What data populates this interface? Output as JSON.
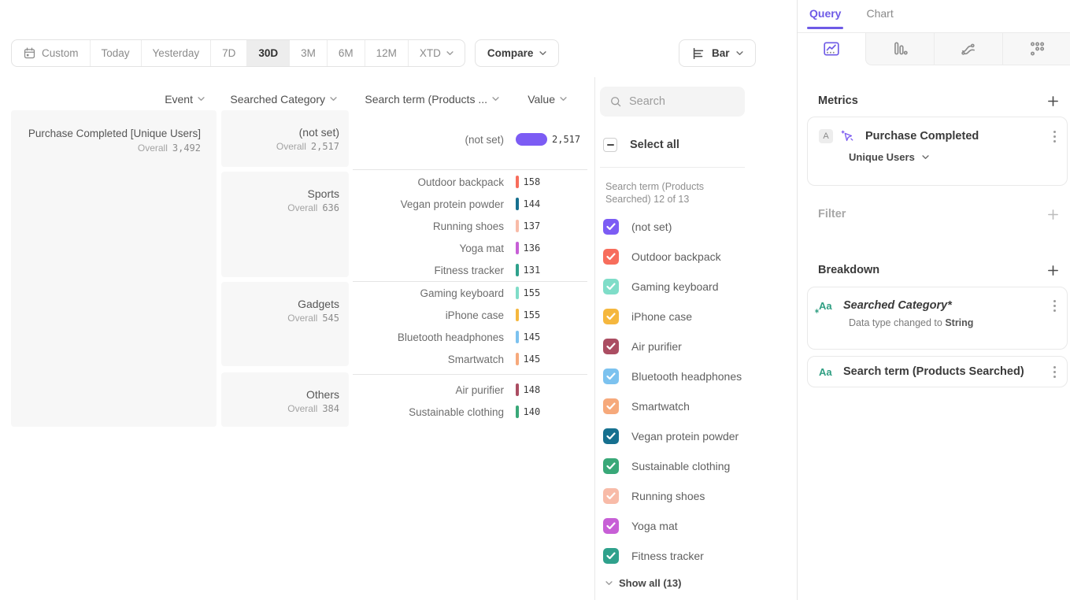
{
  "colors": {
    "accent": "#6e5ae6"
  },
  "toolbar": {
    "date_ranges": [
      {
        "label": "Custom",
        "icon": "calendar-icon"
      },
      {
        "label": "Today"
      },
      {
        "label": "Yesterday"
      },
      {
        "label": "7D"
      },
      {
        "label": "30D",
        "selected": true
      },
      {
        "label": "3M"
      },
      {
        "label": "6M"
      },
      {
        "label": "12M"
      },
      {
        "label": "XTD",
        "chevron": true
      }
    ],
    "compare_label": "Compare",
    "chart_type": {
      "label": "Bar",
      "icon": "horizontal-bar-chart-icon"
    }
  },
  "table": {
    "headers": {
      "event": "Event",
      "category": "Searched Category",
      "term": "Search term (Products ...",
      "value": "Value"
    },
    "overall_label": "Overall",
    "event": {
      "name": "Purchase Completed [Unique Users]",
      "overall": "3,492"
    },
    "groups": [
      {
        "category": "(not set)",
        "overall": "2,517",
        "rows": [
          {
            "term": "(not set)",
            "value": "2,517",
            "color": "#7c5cf4",
            "bar": "large"
          }
        ]
      },
      {
        "category": "Sports",
        "overall": "636",
        "rows": [
          {
            "term": "Outdoor backpack",
            "value": "158",
            "color": "#f76d5c"
          },
          {
            "term": "Vegan protein powder",
            "value": "144",
            "color": "#16708f"
          },
          {
            "term": "Running shoes",
            "value": "137",
            "color": "#f8bba8"
          },
          {
            "term": "Yoga mat",
            "value": "136",
            "color": "#c75fd6"
          },
          {
            "term": "Fitness tracker",
            "value": "131",
            "color": "#2fa18c"
          }
        ]
      },
      {
        "category": "Gadgets",
        "overall": "545",
        "rows": [
          {
            "term": "Gaming keyboard",
            "value": "155",
            "color": "#7fddc8"
          },
          {
            "term": "iPhone case",
            "value": "155",
            "color": "#f5b73e"
          },
          {
            "term": "Bluetooth headphones",
            "value": "145",
            "color": "#7cc2ef"
          },
          {
            "term": "Smartwatch",
            "value": "145",
            "color": "#f6a97b"
          }
        ]
      },
      {
        "category": "Others",
        "overall": "384",
        "rows": [
          {
            "term": "Air purifier",
            "value": "148",
            "color": "#ab4d62"
          },
          {
            "term": "Sustainable clothing",
            "value": "140",
            "color": "#39a878"
          }
        ]
      }
    ]
  },
  "filter_panel": {
    "search_placeholder": "Search",
    "select_all_label": "Select all",
    "list_label": "Search term (Products Searched) 12 of 13",
    "items": [
      {
        "label": "(not set)",
        "color": "#7c5cf4",
        "checked": true
      },
      {
        "label": "Outdoor backpack",
        "color": "#f76d5c",
        "checked": true
      },
      {
        "label": "Gaming keyboard",
        "color": "#7fddc8",
        "checked": true
      },
      {
        "label": "iPhone case",
        "color": "#f5b73e",
        "checked": true
      },
      {
        "label": "Air purifier",
        "color": "#ab4d62",
        "checked": true
      },
      {
        "label": "Bluetooth headphones",
        "color": "#7cc2ef",
        "checked": true
      },
      {
        "label": "Smartwatch",
        "color": "#f6a97b",
        "checked": true
      },
      {
        "label": "Vegan protein powder",
        "color": "#16708f",
        "checked": true
      },
      {
        "label": "Sustainable clothing",
        "color": "#39a878",
        "checked": true
      },
      {
        "label": "Running shoes",
        "color": "#f8bba8",
        "checked": true
      },
      {
        "label": "Yoga mat",
        "color": "#c75fd6",
        "checked": true
      },
      {
        "label": "Fitness tracker",
        "color": "#2fa18c",
        "checked": true,
        "textured": true
      }
    ],
    "show_all_label": "Show all (13)"
  },
  "sidebar": {
    "tabs": [
      {
        "label": "Query",
        "active": true
      },
      {
        "label": "Chart",
        "active": false
      }
    ],
    "icon_tabs": [
      {
        "name": "insights-icon",
        "active": true
      },
      {
        "name": "funnels-icon",
        "active": false
      },
      {
        "name": "flows-icon",
        "active": false
      },
      {
        "name": "retention-icon",
        "active": false
      }
    ],
    "metrics": {
      "header": "Metrics",
      "card": {
        "badge": "A",
        "event_name": "Purchase Completed",
        "measure": "Unique Users"
      }
    },
    "filter": {
      "header": "Filter"
    },
    "breakdown": {
      "header": "Breakdown",
      "cards": [
        {
          "icon": "Aa",
          "name": "Searched Category*",
          "italic": true,
          "note": "Data type changed to ",
          "note_emphasis": "String"
        },
        {
          "icon": "Aa",
          "name": "Search term (Products Searched)"
        }
      ]
    }
  }
}
